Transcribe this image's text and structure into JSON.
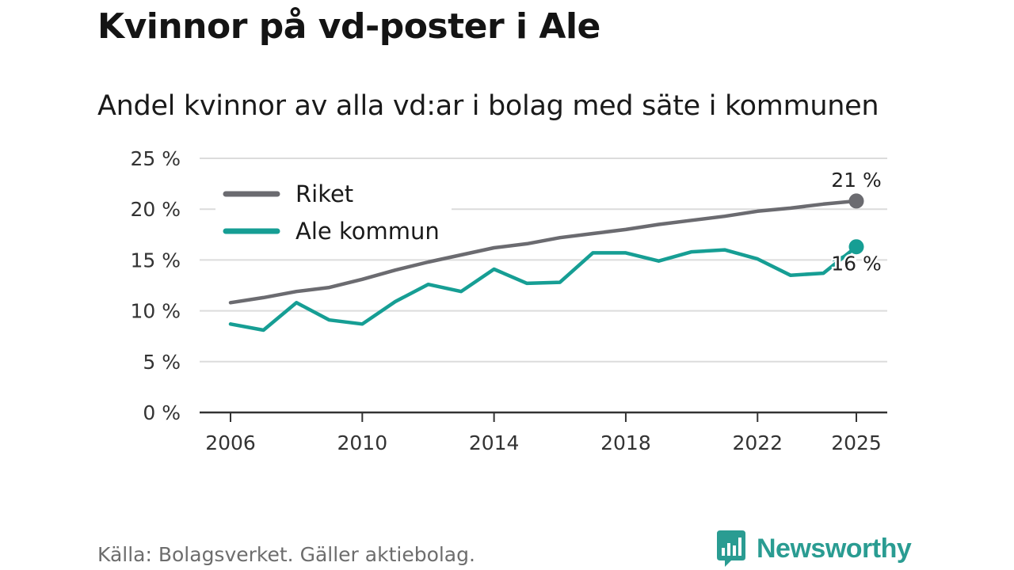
{
  "header": {
    "title": "Kvinnor på vd-poster i Ale",
    "subtitle": "Andel kvinnor av alla vd:ar i bolag med säte i kommunen"
  },
  "chart_data": {
    "type": "line",
    "x": [
      2006,
      2007,
      2008,
      2009,
      2010,
      2011,
      2012,
      2013,
      2014,
      2015,
      2016,
      2017,
      2018,
      2019,
      2020,
      2021,
      2022,
      2023,
      2024,
      2025
    ],
    "series": [
      {
        "name": "Riket",
        "color": "#6b6b70",
        "values": [
          10.8,
          11.3,
          11.9,
          12.3,
          13.1,
          14.0,
          14.8,
          15.5,
          16.2,
          16.6,
          17.2,
          17.6,
          18.0,
          18.5,
          18.9,
          19.3,
          19.8,
          20.1,
          20.5,
          20.8
        ],
        "end_label": "21 %"
      },
      {
        "name": "Ale kommun",
        "color": "#169e94",
        "values": [
          8.7,
          8.1,
          10.8,
          9.1,
          8.7,
          10.9,
          12.6,
          11.9,
          14.1,
          12.7,
          12.8,
          15.7,
          15.7,
          14.9,
          15.8,
          16.0,
          15.1,
          13.5,
          13.7,
          16.3
        ],
        "end_label": "16 %"
      }
    ],
    "x_ticks": [
      "2006",
      "2010",
      "2014",
      "2018",
      "2022",
      "2025"
    ],
    "y_ticks": [
      "0 %",
      "5 %",
      "10 %",
      "15 %",
      "20 %",
      "25 %"
    ],
    "ylim": [
      0,
      25
    ],
    "grid": true,
    "legend": "top-left"
  },
  "footer": {
    "source": "Källa: Bolagsverket. Gäller aktiebolag.",
    "brand": "Newsworthy",
    "brand_color": "#2a9c92"
  }
}
